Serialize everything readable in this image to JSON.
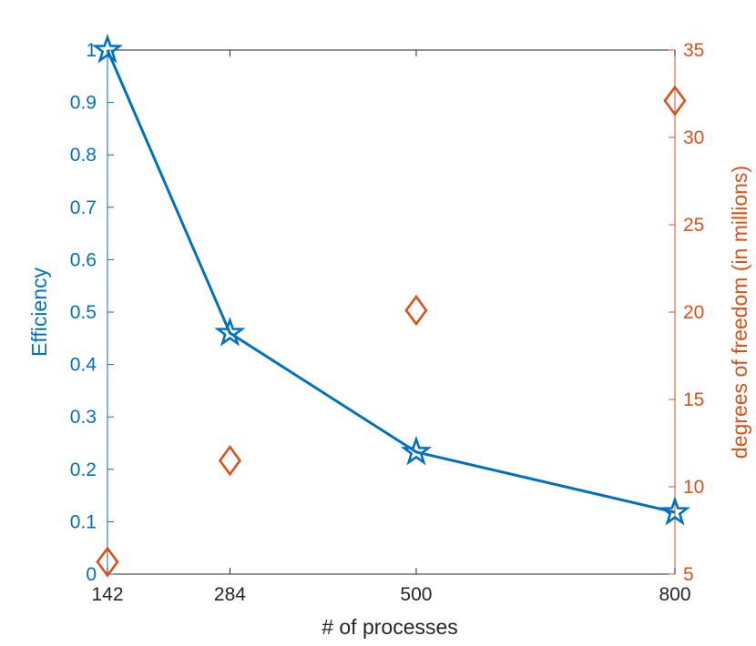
{
  "chart_data": {
    "type": "line",
    "x": [
      142,
      284,
      500,
      800
    ],
    "xticks": [
      "142",
      "284",
      "500",
      "800"
    ],
    "xlabel": "# of processes",
    "xlim": [
      142,
      800
    ],
    "series": [
      {
        "axis": "left",
        "kind": "line",
        "marker": "star",
        "color": "#0072BD",
        "values": [
          1.0,
          0.46,
          0.233,
          0.118
        ]
      },
      {
        "axis": "right",
        "kind": "scatter",
        "marker": "diamond",
        "color": "#D95319",
        "values": [
          5.7,
          11.5,
          20.1,
          32.1
        ]
      }
    ],
    "ylabel_left": "Efficiency",
    "ylim_left": [
      0,
      1
    ],
    "yticks_left": [
      "0",
      "0.1",
      "0.2",
      "0.3",
      "0.4",
      "0.5",
      "0.6",
      "0.7",
      "0.8",
      "0.9",
      "1"
    ],
    "ylabel_right": "degrees of freedom (in millions)",
    "ylim_right": [
      5,
      35
    ],
    "yticks_right": [
      "5",
      "10",
      "15",
      "20",
      "25",
      "30",
      "35"
    ],
    "left_color": "#0072BD",
    "right_color": "#D95319",
    "axis_color": "#262626",
    "grid": false,
    "legend": "none"
  }
}
